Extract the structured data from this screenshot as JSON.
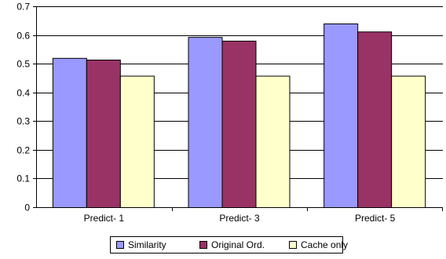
{
  "chart_data": {
    "type": "bar",
    "title": "",
    "xlabel": "",
    "ylabel": "",
    "categories": [
      "Predict- 1",
      "Predict- 3",
      "Predict- 5"
    ],
    "series": [
      {
        "name": "Similarity",
        "values": [
          0.52,
          0.593,
          0.64
        ],
        "color": "#9999FF"
      },
      {
        "name": "Original Ord.",
        "values": [
          0.514,
          0.58,
          0.612
        ],
        "color": "#993366"
      },
      {
        "name": "Cache only",
        "values": [
          0.458,
          0.458,
          0.458
        ],
        "color": "#FFFFCC"
      }
    ],
    "ylim": [
      0,
      0.7
    ],
    "yticks": [
      "0",
      "0.1",
      "0.2",
      "0.3",
      "0.4",
      "0.5",
      "0.6",
      "0.7"
    ],
    "ytick_values": [
      0,
      0.1,
      0.2,
      0.3,
      0.4,
      0.5,
      0.6,
      0.7
    ],
    "grid": true,
    "legend_position": "bottom"
  }
}
